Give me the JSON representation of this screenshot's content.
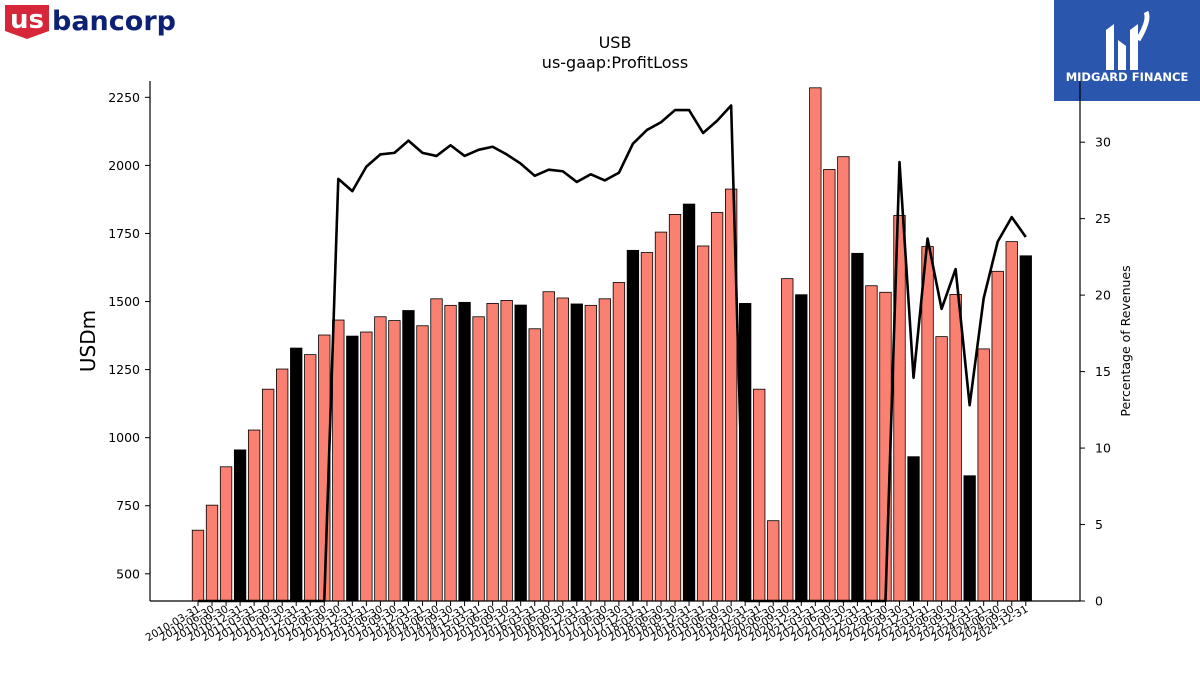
{
  "brand": {
    "logo_us": "us",
    "logo_rest": "bancorp",
    "watermark_text": "MIDGARD FINANCE",
    "logo_red": "#d6273a",
    "logo_blue": "#0c2074",
    "watermark_bg": "#2a56ad"
  },
  "chart_data": {
    "type": "bar",
    "title": "USB",
    "subtitle": "us-gaap:ProfitLoss",
    "ylabel": "USDm",
    "y2label": "Percentage of Revenues",
    "ylim": [
      400,
      2310
    ],
    "y2lim": [
      0,
      34
    ],
    "yticks": [
      500,
      750,
      1000,
      1250,
      1500,
      1750,
      2000,
      2250
    ],
    "y2ticks": [
      0,
      5,
      10,
      15,
      20,
      25,
      30
    ],
    "categories": [
      "2010-03-31",
      "2010-06-30",
      "2010-09-30",
      "2010-12-31",
      "2011-03-31",
      "2011-06-30",
      "2011-09-30",
      "2011-12-31",
      "2012-03-31",
      "2012-06-30",
      "2012-09-30",
      "2012-12-31",
      "2013-03-31",
      "2013-06-30",
      "2013-09-30",
      "2013-12-31",
      "2014-03-31",
      "2014-06-30",
      "2014-09-30",
      "2014-12-31",
      "2015-03-31",
      "2015-06-30",
      "2015-09-30",
      "2015-12-31",
      "2016-03-31",
      "2016-06-30",
      "2016-09-30",
      "2016-12-31",
      "2017-03-31",
      "2017-06-30",
      "2017-09-30",
      "2017-12-31",
      "2018-03-31",
      "2018-06-30",
      "2018-09-30",
      "2018-12-31",
      "2019-03-31",
      "2019-06-30",
      "2019-09-30",
      "2019-12-31",
      "2020-03-31",
      "2020-06-30",
      "2020-09-30",
      "2020-12-31",
      "2021-03-31",
      "2021-06-30",
      "2021-09-30",
      "2021-12-31",
      "2022-03-31",
      "2022-06-30",
      "2022-09-30",
      "2022-12-31",
      "2023-03-31",
      "2023-06-30",
      "2023-09-30",
      "2023-12-31",
      "2024-03-31",
      "2024-06-30",
      "2024-09-30",
      "2024-12-31"
    ],
    "values": [
      660,
      752,
      893,
      955,
      1028,
      1178,
      1252,
      1329,
      1305,
      1377,
      1432,
      1373,
      1388,
      1444,
      1430,
      1467,
      1411,
      1510,
      1486,
      1497,
      1444,
      1493,
      1504,
      1487,
      1400,
      1536,
      1513,
      1491,
      1486,
      1510,
      1570,
      1688,
      1680,
      1755,
      1820,
      1858,
      1704,
      1827,
      1913,
      1493,
      1178,
      695,
      1584,
      1525,
      2285,
      1985,
      2032,
      1677,
      1558,
      1534,
      1816,
      930,
      1702,
      1371,
      1526,
      860,
      1326,
      1611,
      1720,
      1668
    ],
    "bar_colors": [
      "salmon",
      "salmon",
      "salmon",
      "black",
      "salmon",
      "salmon",
      "salmon",
      "black",
      "salmon",
      "salmon",
      "salmon",
      "black",
      "salmon",
      "salmon",
      "salmon",
      "black",
      "salmon",
      "salmon",
      "salmon",
      "black",
      "salmon",
      "salmon",
      "salmon",
      "black",
      "salmon",
      "salmon",
      "salmon",
      "black",
      "salmon",
      "salmon",
      "salmon",
      "black",
      "salmon",
      "salmon",
      "salmon",
      "black",
      "salmon",
      "salmon",
      "salmon",
      "black",
      "salmon",
      "salmon",
      "salmon",
      "black",
      "salmon",
      "salmon",
      "salmon",
      "black",
      "salmon",
      "salmon",
      "salmon",
      "black",
      "salmon",
      "salmon",
      "salmon",
      "black",
      "salmon",
      "salmon",
      "salmon",
      "black"
    ],
    "series": [
      {
        "type": "line",
        "axis": "right",
        "values": [
          0,
          0,
          0,
          0,
          0,
          0,
          0,
          0,
          0,
          0,
          27.6,
          26.8,
          28.4,
          29.2,
          29.3,
          30.1,
          29.3,
          29.1,
          29.8,
          29.1,
          29.5,
          29.7,
          29.2,
          28.6,
          27.8,
          28.2,
          28.1,
          27.4,
          27.9,
          27.5,
          28.0,
          29.9,
          30.8,
          31.3,
          32.1,
          32.1,
          30.6,
          31.4,
          32.4,
          0,
          0,
          0,
          0,
          0,
          0,
          0,
          0,
          0,
          0,
          0,
          28.7,
          14.6,
          23.7,
          19.1,
          21.7,
          12.8,
          19.8,
          23.5,
          25.1,
          23.8
        ]
      }
    ],
    "colors": {
      "salmon": "#fa8072",
      "black": "#000000"
    },
    "grid": false,
    "legend": "none"
  }
}
